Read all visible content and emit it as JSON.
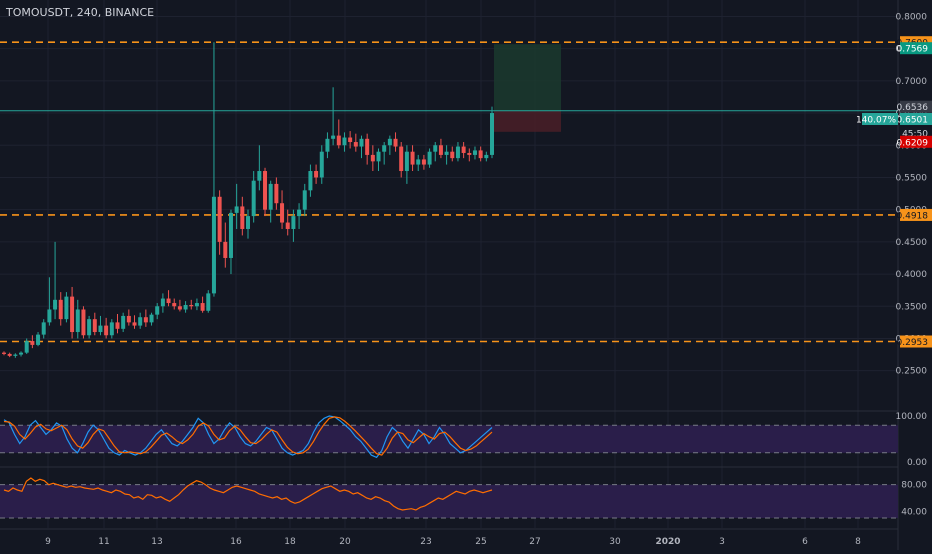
{
  "header": {
    "title": "TOMOUSDT, 240, BINANCE"
  },
  "colors": {
    "background": "#131722",
    "grid": "#1e2230",
    "up": "#26a69a",
    "down": "#ef5350",
    "level_line": "#f7931a",
    "price_line": "#26a69a",
    "stop_label": "#d50000",
    "target_label": "#089981",
    "rsi_band": "#2a1e4a",
    "stoch_k": "#2196f3",
    "stoch_d": "#ff6d00",
    "rsi_line": "#ff6d00"
  },
  "chart_data": [
    {
      "type": "candlestick",
      "name": "price",
      "x_ticks": [
        "9",
        "11",
        "13",
        "16",
        "18",
        "20",
        "23",
        "25",
        "27",
        "30",
        "2020",
        "3",
        "6",
        "8"
      ],
      "y_ticks": [
        "0.8000",
        "0.7500",
        "0.7000",
        "0.6500",
        "0.6000",
        "0.5500",
        "0.5000",
        "0.4500",
        "0.4000",
        "0.3500",
        "0.3000",
        "0.2500"
      ],
      "ylim": [
        0.22,
        0.81
      ],
      "horizontal_levels": [
        0.76,
        0.4918,
        0.2953
      ],
      "position": {
        "entry": 0.6536,
        "target": 0.7569,
        "stop": 0.6209
      },
      "labels": {
        "level_top": "0.7600",
        "target": "0.7569",
        "entry": "0.6536",
        "current_pct": "140.07%",
        "current": "0.6501",
        "countdown": "45:50",
        "stop": "0.6209",
        "level_mid": "0.4918",
        "level_low": "0.2953"
      },
      "candles": [
        [
          0.278,
          0.28,
          0.274,
          0.276
        ],
        [
          0.276,
          0.278,
          0.271,
          0.273
        ],
        [
          0.273,
          0.277,
          0.27,
          0.275
        ],
        [
          0.275,
          0.28,
          0.272,
          0.278
        ],
        [
          0.278,
          0.3,
          0.276,
          0.296
        ],
        [
          0.296,
          0.305,
          0.285,
          0.29
        ],
        [
          0.29,
          0.31,
          0.288,
          0.306
        ],
        [
          0.306,
          0.33,
          0.3,
          0.325
        ],
        [
          0.325,
          0.395,
          0.32,
          0.345
        ],
        [
          0.345,
          0.45,
          0.33,
          0.36
        ],
        [
          0.36,
          0.372,
          0.32,
          0.33
        ],
        [
          0.33,
          0.372,
          0.325,
          0.365
        ],
        [
          0.365,
          0.38,
          0.3,
          0.31
        ],
        [
          0.31,
          0.36,
          0.3,
          0.345
        ],
        [
          0.345,
          0.35,
          0.3,
          0.305
        ],
        [
          0.305,
          0.335,
          0.3,
          0.33
        ],
        [
          0.33,
          0.34,
          0.305,
          0.31
        ],
        [
          0.31,
          0.335,
          0.305,
          0.32
        ],
        [
          0.32,
          0.332,
          0.3,
          0.305
        ],
        [
          0.305,
          0.33,
          0.3,
          0.325
        ],
        [
          0.325,
          0.338,
          0.308,
          0.315
        ],
        [
          0.315,
          0.34,
          0.31,
          0.335
        ],
        [
          0.335,
          0.345,
          0.32,
          0.325
        ],
        [
          0.325,
          0.336,
          0.315,
          0.32
        ],
        [
          0.32,
          0.34,
          0.315,
          0.333
        ],
        [
          0.333,
          0.345,
          0.318,
          0.325
        ],
        [
          0.325,
          0.34,
          0.32,
          0.337
        ],
        [
          0.337,
          0.355,
          0.33,
          0.35
        ],
        [
          0.35,
          0.37,
          0.34,
          0.362
        ],
        [
          0.362,
          0.375,
          0.35,
          0.355
        ],
        [
          0.355,
          0.362,
          0.345,
          0.35
        ],
        [
          0.35,
          0.36,
          0.342,
          0.345
        ],
        [
          0.345,
          0.358,
          0.34,
          0.352
        ],
        [
          0.352,
          0.36,
          0.345,
          0.35
        ],
        [
          0.35,
          0.362,
          0.344,
          0.355
        ],
        [
          0.355,
          0.365,
          0.34,
          0.343
        ],
        [
          0.343,
          0.375,
          0.34,
          0.37
        ],
        [
          0.37,
          0.76,
          0.365,
          0.52
        ],
        [
          0.52,
          0.53,
          0.43,
          0.45
        ],
        [
          0.45,
          0.48,
          0.41,
          0.425
        ],
        [
          0.425,
          0.5,
          0.4,
          0.495
        ],
        [
          0.495,
          0.54,
          0.47,
          0.505
        ],
        [
          0.505,
          0.52,
          0.46,
          0.47
        ],
        [
          0.47,
          0.5,
          0.455,
          0.49
        ],
        [
          0.49,
          0.56,
          0.48,
          0.545
        ],
        [
          0.545,
          0.6,
          0.53,
          0.56
        ],
        [
          0.56,
          0.565,
          0.49,
          0.5
        ],
        [
          0.5,
          0.545,
          0.48,
          0.54
        ],
        [
          0.54,
          0.55,
          0.5,
          0.51
        ],
        [
          0.51,
          0.53,
          0.47,
          0.48
        ],
        [
          0.48,
          0.5,
          0.46,
          0.47
        ],
        [
          0.47,
          0.5,
          0.45,
          0.49
        ],
        [
          0.49,
          0.51,
          0.47,
          0.5
        ],
        [
          0.5,
          0.54,
          0.49,
          0.53
        ],
        [
          0.53,
          0.57,
          0.52,
          0.56
        ],
        [
          0.56,
          0.57,
          0.54,
          0.55
        ],
        [
          0.55,
          0.6,
          0.54,
          0.59
        ],
        [
          0.59,
          0.62,
          0.58,
          0.61
        ],
        [
          0.61,
          0.69,
          0.6,
          0.615
        ],
        [
          0.615,
          0.64,
          0.595,
          0.6
        ],
        [
          0.6,
          0.62,
          0.59,
          0.612
        ],
        [
          0.612,
          0.622,
          0.595,
          0.605
        ],
        [
          0.605,
          0.618,
          0.59,
          0.598
        ],
        [
          0.598,
          0.615,
          0.58,
          0.61
        ],
        [
          0.61,
          0.618,
          0.57,
          0.585
        ],
        [
          0.585,
          0.6,
          0.56,
          0.575
        ],
        [
          0.575,
          0.595,
          0.56,
          0.59
        ],
        [
          0.59,
          0.605,
          0.57,
          0.6
        ],
        [
          0.6,
          0.615,
          0.585,
          0.61
        ],
        [
          0.61,
          0.62,
          0.59,
          0.598
        ],
        [
          0.598,
          0.605,
          0.55,
          0.56
        ],
        [
          0.56,
          0.6,
          0.54,
          0.59
        ],
        [
          0.59,
          0.6,
          0.56,
          0.57
        ],
        [
          0.57,
          0.585,
          0.56,
          0.578
        ],
        [
          0.578,
          0.585,
          0.562,
          0.57
        ],
        [
          0.57,
          0.595,
          0.565,
          0.59
        ],
        [
          0.59,
          0.605,
          0.575,
          0.6
        ],
        [
          0.6,
          0.61,
          0.58,
          0.585
        ],
        [
          0.585,
          0.6,
          0.57,
          0.59
        ],
        [
          0.59,
          0.598,
          0.575,
          0.58
        ],
        [
          0.58,
          0.605,
          0.575,
          0.598
        ],
        [
          0.598,
          0.605,
          0.58,
          0.588
        ],
        [
          0.588,
          0.595,
          0.575,
          0.585
        ],
        [
          0.585,
          0.598,
          0.578,
          0.592
        ],
        [
          0.592,
          0.598,
          0.575,
          0.58
        ],
        [
          0.58,
          0.59,
          0.575,
          0.585
        ],
        [
          0.585,
          0.66,
          0.58,
          0.65
        ]
      ]
    },
    {
      "type": "line",
      "name": "stochastic",
      "y_ticks": [
        "100.00",
        "0.00"
      ],
      "ylim": [
        0,
        100
      ],
      "band": [
        20,
        80
      ],
      "series_k": [
        92,
        85,
        60,
        40,
        55,
        80,
        90,
        75,
        60,
        70,
        85,
        78,
        50,
        30,
        20,
        40,
        65,
        80,
        70,
        50,
        30,
        20,
        15,
        25,
        20,
        15,
        20,
        30,
        45,
        60,
        70,
        55,
        40,
        35,
        45,
        60,
        75,
        95,
        85,
        60,
        40,
        50,
        70,
        85,
        75,
        55,
        40,
        35,
        45,
        60,
        75,
        70,
        50,
        30,
        20,
        15,
        20,
        25,
        40,
        65,
        85,
        95,
        100,
        98,
        90,
        80,
        70,
        55,
        45,
        30,
        15,
        10,
        25,
        55,
        75,
        65,
        45,
        30,
        50,
        70,
        60,
        40,
        55,
        75,
        60,
        40,
        30,
        20,
        25,
        35,
        45,
        55,
        65,
        75
      ],
      "series_d": [
        88,
        87,
        78,
        60,
        50,
        62,
        76,
        82,
        72,
        68,
        74,
        80,
        70,
        50,
        35,
        30,
        42,
        60,
        72,
        68,
        52,
        35,
        22,
        20,
        22,
        20,
        18,
        22,
        32,
        45,
        58,
        63,
        55,
        45,
        40,
        48,
        60,
        78,
        85,
        78,
        60,
        48,
        52,
        68,
        78,
        70,
        55,
        42,
        40,
        48,
        60,
        70,
        65,
        48,
        32,
        22,
        18,
        20,
        28,
        45,
        65,
        82,
        95,
        98,
        96,
        88,
        78,
        67,
        55,
        43,
        30,
        18,
        15,
        30,
        52,
        65,
        62,
        48,
        42,
        52,
        62,
        55,
        50,
        62,
        65,
        55,
        42,
        30,
        25,
        28,
        35,
        45,
        55,
        65
      ]
    },
    {
      "type": "line",
      "name": "rsi",
      "y_ticks": [
        "80.00",
        "40.00"
      ],
      "ylim": [
        15,
        105
      ],
      "band": [
        30,
        80
      ],
      "series": [
        72,
        70,
        75,
        72,
        70,
        85,
        90,
        85,
        88,
        86,
        80,
        82,
        80,
        78,
        76,
        78,
        76,
        77,
        75,
        74,
        73,
        75,
        72,
        70,
        68,
        72,
        70,
        66,
        65,
        60,
        62,
        58,
        65,
        64,
        60,
        62,
        58,
        55,
        60,
        65,
        72,
        78,
        82,
        86,
        84,
        80,
        75,
        72,
        70,
        68,
        72,
        76,
        78,
        76,
        74,
        72,
        70,
        66,
        64,
        62,
        60,
        62,
        58,
        60,
        55,
        52,
        54,
        58,
        62,
        66,
        70,
        74,
        76,
        78,
        74,
        70,
        72,
        70,
        66,
        68,
        64,
        60,
        58,
        62,
        60,
        56,
        54,
        48,
        44,
        42,
        43,
        44,
        42,
        46,
        48,
        52,
        56,
        60,
        58,
        62,
        66,
        70,
        68,
        66,
        70,
        72,
        70,
        68,
        70,
        72
      ]
    }
  ]
}
